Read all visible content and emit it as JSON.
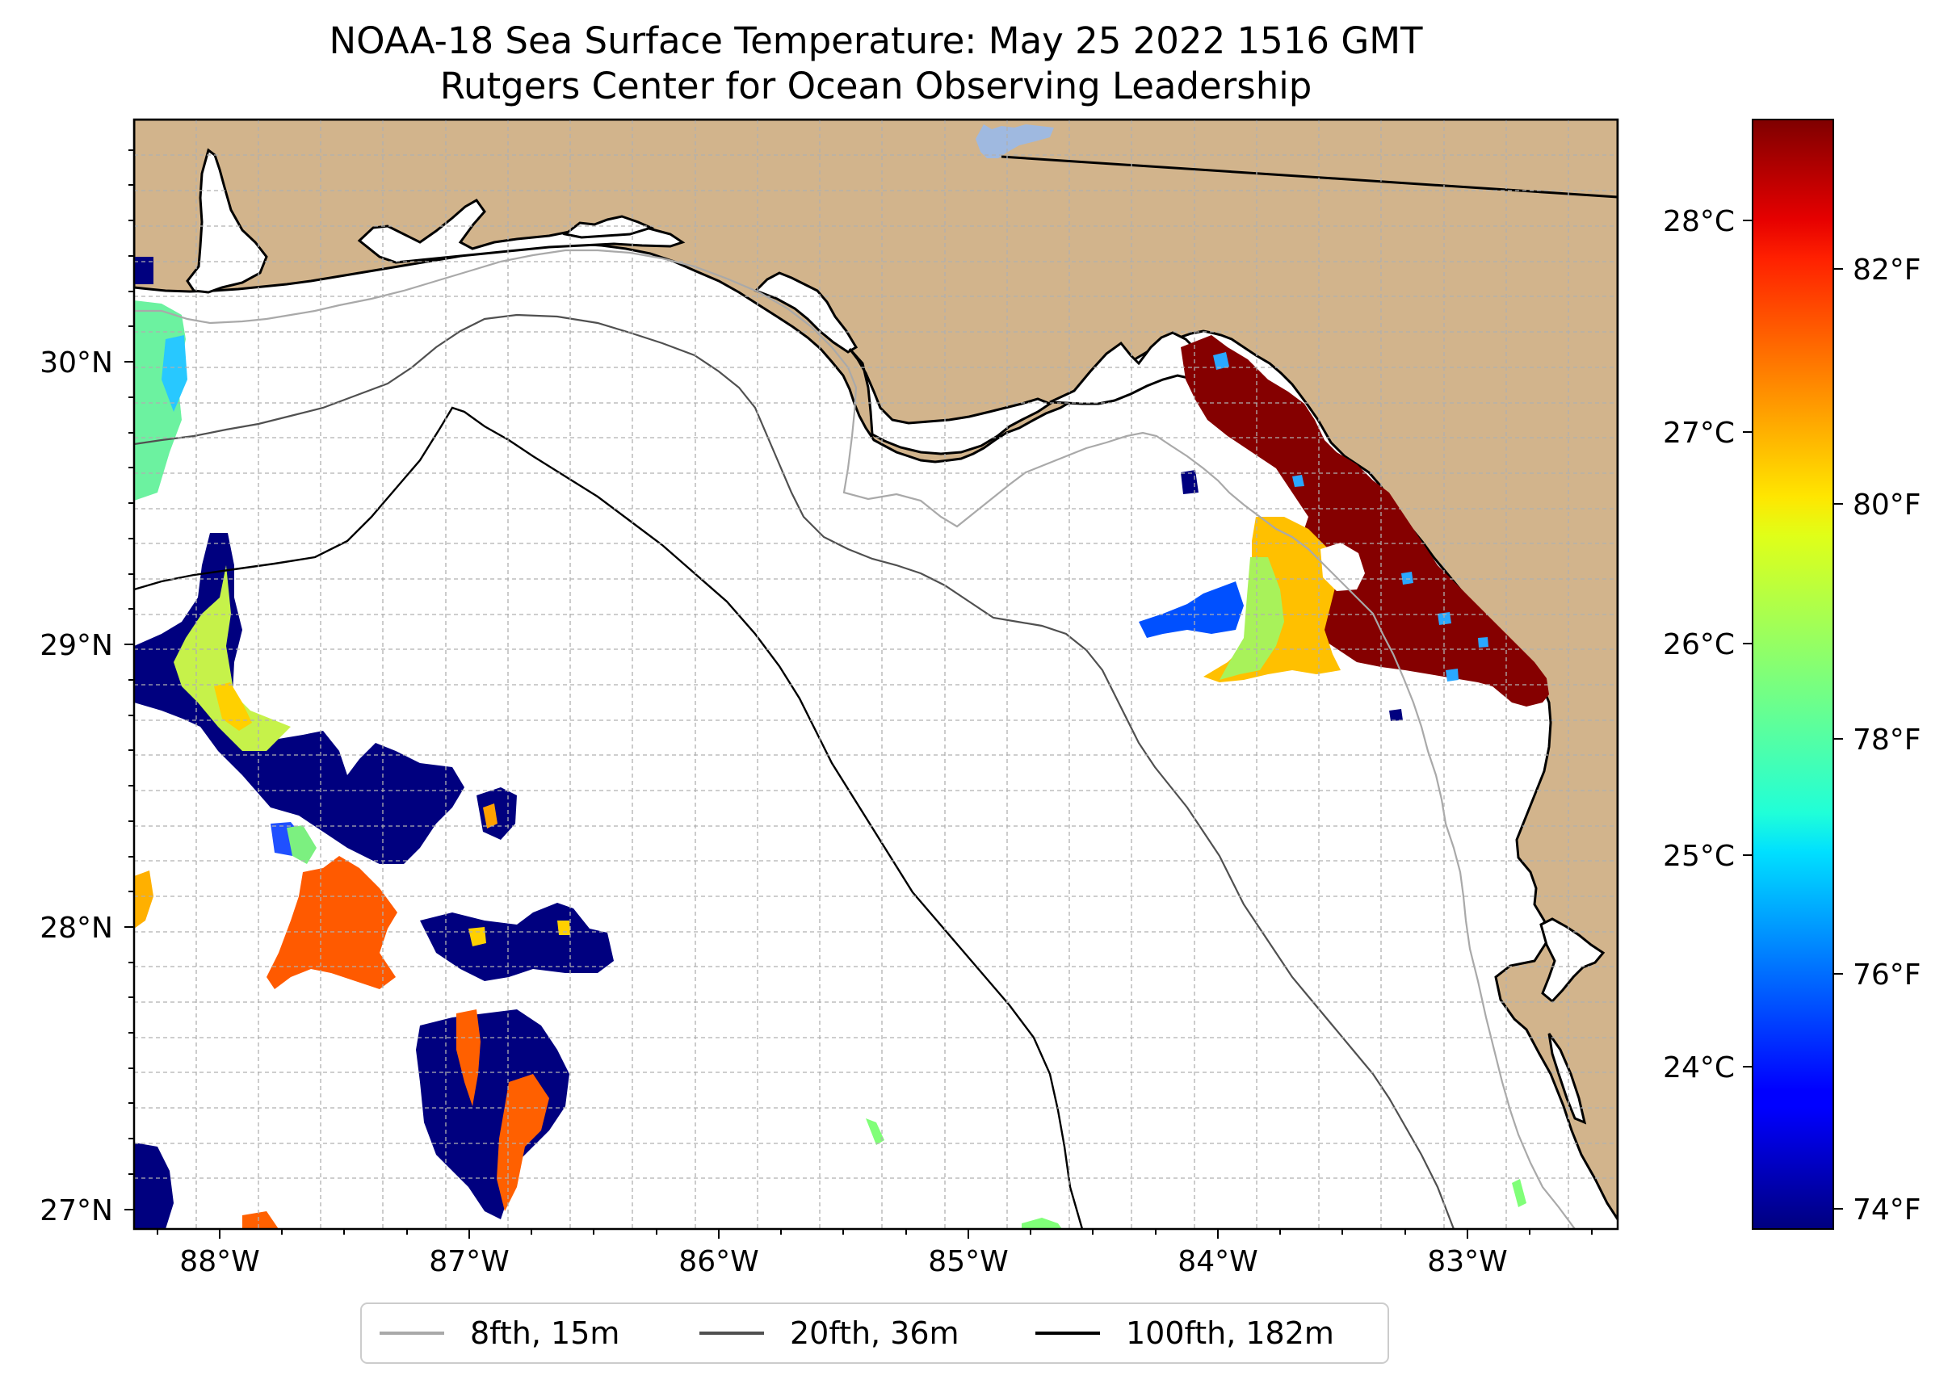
{
  "title": {
    "line1": "NOAA-18 Sea Surface Temperature: May 25 2022 1516 GMT",
    "line2": "Rutgers Center for Ocean Observing Leadership"
  },
  "map": {
    "lon_range": [
      -88.33,
      -82.38
    ],
    "lat_range": [
      26.94,
      30.87
    ],
    "lon_ticks": [
      "88°W",
      "87°W",
      "86°W",
      "85°W",
      "84°W",
      "83°W"
    ],
    "lat_ticks": [
      "30°N",
      "29°N",
      "28°N",
      "27°N"
    ],
    "gridlines": true,
    "land_color": "#d2b48c",
    "lake_color": "#9fb9e0"
  },
  "colorbar": {
    "celsius_ticks": [
      "28°C",
      "27°C",
      "26°C",
      "25°C",
      "24°C"
    ],
    "fahrenheit_ticks": [
      "82°F",
      "80°F",
      "78°F",
      "76°F",
      "74°F"
    ],
    "colormap": "jet",
    "range_f": [
      73.6,
      83.3
    ]
  },
  "legend": {
    "location": "bottom-center",
    "items": [
      {
        "label": "8fth, 15m",
        "color": "#a9a9a9"
      },
      {
        "label": "20fth, 36m",
        "color": "#505050"
      },
      {
        "label": "100fth, 182m",
        "color": "#000000"
      }
    ]
  }
}
